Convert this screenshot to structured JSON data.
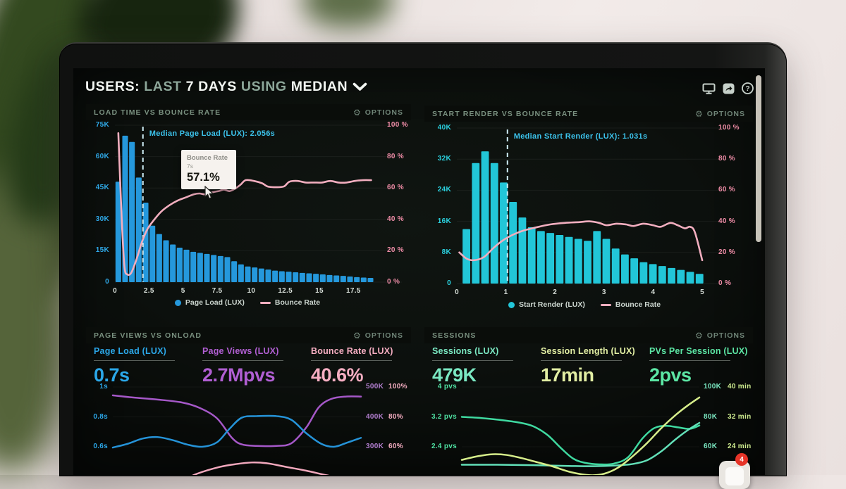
{
  "header": {
    "title_parts": [
      {
        "text": "USERS:",
        "tone": "bright"
      },
      {
        "text": "LAST",
        "tone": "dim"
      },
      {
        "text": "7 DAYS",
        "tone": "bright"
      },
      {
        "text": "USING",
        "tone": "dim"
      },
      {
        "text": "MEDIAN",
        "tone": "bright"
      }
    ],
    "icons": [
      "display-icon",
      "share-icon",
      "help-icon"
    ]
  },
  "options_label": "OPTIONS",
  "tooltip": {
    "title": "Bounce Rate",
    "x_value": "7s",
    "value": "57.1%"
  },
  "notification_badge": "4",
  "colors": {
    "screen_bg": "#0c100d",
    "blue": "#2ba2e4",
    "cyan": "#27c9da",
    "pink_line": "#f2aebf",
    "pink_text": "#ee8ca6",
    "purple": "#a85ace",
    "mint": "#7be9c3",
    "green": "#4fe0a2",
    "yellow_green": "#d6ed8a"
  },
  "chart_data": [
    {
      "type": "bar",
      "panel": "load-time-vs-bounce-rate",
      "title": "LOAD TIME VS BOUNCE RATE",
      "x_axis": {
        "ticks": [
          "0",
          "2.5",
          "5",
          "7.5",
          "10",
          "12.5",
          "15",
          "17.5"
        ],
        "max": 19.5,
        "unit": "seconds"
      },
      "left_axis": {
        "ticks": [
          "75K",
          "60K",
          "45K",
          "30K",
          "15K",
          "0"
        ],
        "max_value": 75000,
        "color": "#2fa9e8"
      },
      "right_axis": {
        "ticks": [
          "100 %",
          "80 %",
          "60 %",
          "40 %",
          "20 %",
          "0 %"
        ],
        "max_value": 100,
        "color": "#ee8ca6"
      },
      "bars": {
        "name": "Page Load (LUX)",
        "color": "#2598dc",
        "start": 0,
        "step": 0.5,
        "values_thousands": [
          48,
          70,
          67,
          50,
          38,
          27,
          23,
          20,
          18,
          16.5,
          15.5,
          14.5,
          14,
          13.5,
          13,
          12.5,
          12,
          10,
          8.5,
          7.5,
          7,
          6.5,
          6,
          5.5,
          5.2,
          5,
          4.7,
          4.4,
          4.2,
          4,
          3.7,
          3.4,
          3.2,
          3,
          2.7,
          2.4,
          2.2,
          2
        ]
      },
      "line": {
        "name": "Bounce Rate",
        "color": "#f2aebf",
        "points_s_pct": [
          [
            0.25,
            95
          ],
          [
            0.5,
            40
          ],
          [
            0.7,
            10
          ],
          [
            0.9,
            5
          ],
          [
            1.2,
            6
          ],
          [
            1.6,
            15
          ],
          [
            2.0,
            26
          ],
          [
            2.4,
            34
          ],
          [
            2.9,
            40
          ],
          [
            3.4,
            45
          ],
          [
            4.0,
            49
          ],
          [
            4.6,
            52
          ],
          [
            5.2,
            54
          ],
          [
            5.8,
            56
          ],
          [
            6.2,
            56.5
          ],
          [
            6.6,
            56
          ],
          [
            7.0,
            57.1
          ],
          [
            7.6,
            58
          ],
          [
            8.0,
            59
          ],
          [
            8.4,
            58
          ],
          [
            8.8,
            59.5
          ],
          [
            9.2,
            62
          ],
          [
            9.6,
            65
          ],
          [
            10.2,
            64.5
          ],
          [
            10.8,
            63
          ],
          [
            11.2,
            61
          ],
          [
            11.8,
            60.5
          ],
          [
            12.4,
            61
          ],
          [
            12.8,
            64
          ],
          [
            13.4,
            64.5
          ],
          [
            14.0,
            63.5
          ],
          [
            14.6,
            63.5
          ],
          [
            15.2,
            63.5
          ],
          [
            15.8,
            64.5
          ],
          [
            16.4,
            63.5
          ],
          [
            17.0,
            63.5
          ],
          [
            17.6,
            64.5
          ],
          [
            18.2,
            65
          ],
          [
            18.8,
            65
          ]
        ]
      },
      "median": {
        "label": "Median Page Load (LUX): 2.056s",
        "value_s": 2.056
      },
      "legend": [
        {
          "label": "Page Load (LUX)",
          "marker": "dot",
          "color": "#2598dc"
        },
        {
          "label": "Bounce Rate",
          "marker": "line",
          "color": "#f2aebf"
        }
      ]
    },
    {
      "type": "bar",
      "panel": "start-render-vs-bounce-rate",
      "title": "START RENDER VS BOUNCE RATE",
      "x_axis": {
        "ticks": [
          "0",
          "1",
          "2",
          "3",
          "4",
          "5"
        ],
        "max": 5.2,
        "unit": "seconds"
      },
      "left_axis": {
        "ticks": [
          "40K",
          "32K",
          "24K",
          "16K",
          "8K",
          "0"
        ],
        "max_value": 40000,
        "color": "#2bd2e0"
      },
      "right_axis": {
        "ticks": [
          "100 %",
          "80 %",
          "60 %",
          "40 %",
          "20 %",
          "0 %"
        ],
        "max_value": 100,
        "color": "#ee8ca6"
      },
      "bars": {
        "name": "Start Render (LUX)",
        "color": "#22c6d8",
        "start": 0.1,
        "step": 0.19,
        "values_thousands": [
          14,
          31,
          34,
          31,
          26,
          21,
          17,
          14.5,
          13.5,
          13,
          12.5,
          12,
          11.5,
          11,
          13.5,
          11.5,
          9,
          7.5,
          6.5,
          5.5,
          5,
          4.5,
          4,
          3.5,
          3,
          2.5
        ]
      },
      "line": {
        "name": "Bounce Rate",
        "color": "#f2aebf",
        "points_s_pct": [
          [
            0.05,
            20
          ],
          [
            0.2,
            16
          ],
          [
            0.35,
            15
          ],
          [
            0.55,
            17
          ],
          [
            0.75,
            23
          ],
          [
            0.95,
            28
          ],
          [
            1.15,
            31.5
          ],
          [
            1.35,
            34
          ],
          [
            1.6,
            36
          ],
          [
            1.9,
            38
          ],
          [
            2.2,
            39
          ],
          [
            2.5,
            39.5
          ],
          [
            2.7,
            40
          ],
          [
            2.9,
            39
          ],
          [
            3.05,
            37.5
          ],
          [
            3.25,
            38.5
          ],
          [
            3.45,
            38
          ],
          [
            3.6,
            37
          ],
          [
            3.8,
            38.5
          ],
          [
            4.0,
            37.5
          ],
          [
            4.15,
            36.5
          ],
          [
            4.35,
            39
          ],
          [
            4.5,
            37.5
          ],
          [
            4.65,
            35.5
          ],
          [
            4.75,
            36.5
          ],
          [
            4.85,
            33
          ],
          [
            5.0,
            15
          ]
        ]
      },
      "median": {
        "label": "Median Start Render (LUX): 1.031s",
        "value_s": 1.031
      },
      "legend": [
        {
          "label": "Start Render (LUX)",
          "marker": "dot",
          "color": "#22c6d8"
        },
        {
          "label": "Bounce Rate",
          "marker": "line",
          "color": "#f2aebf"
        }
      ]
    },
    {
      "type": "line",
      "panel": "page-views-vs-onload",
      "title": "PAGE VIEWS VS ONLOAD",
      "metrics": [
        {
          "label": "Page Load (LUX)",
          "value": "0.7s",
          "color": "#2ba7e8"
        },
        {
          "label": "Page Views (LUX)",
          "value": "2.7Mpvs",
          "color": "#b15fd3"
        },
        {
          "label": "Bounce Rate (LUX)",
          "value": "40.6%",
          "color": "#f6aec2"
        }
      ],
      "left_axis": {
        "ticks": [
          "1s",
          "0.8s",
          "0.6s"
        ],
        "values": [
          1,
          0.8,
          0.6
        ],
        "color": "#2ba7e8"
      },
      "right_axis_outer": {
        "ticks": [
          "500K",
          "400K",
          "300K"
        ],
        "values": [
          500,
          400,
          300
        ],
        "color": "#b37fd0"
      },
      "right_axis_inner": {
        "ticks": [
          "100%",
          "80%",
          "60%"
        ],
        "values": [
          100,
          80,
          60
        ],
        "color": "#f6aec2"
      },
      "series": [
        {
          "name": "Page Views (LUX)",
          "axis": "thousands",
          "color": "#a558c8",
          "points": [
            [
              0,
              472
            ],
            [
              8,
              465
            ],
            [
              18,
              458
            ],
            [
              28,
              448
            ],
            [
              35,
              430
            ],
            [
              42,
              395
            ],
            [
              48,
              330
            ],
            [
              52,
              308
            ],
            [
              58,
              303
            ],
            [
              66,
              303
            ],
            [
              72,
              312
            ],
            [
              78,
              365
            ],
            [
              83,
              432
            ],
            [
              88,
              460
            ],
            [
              94,
              468
            ],
            [
              100,
              468
            ]
          ]
        },
        {
          "name": "Page Load (LUX)",
          "axis": "seconds",
          "color": "#2593d8",
          "points": [
            [
              0,
              0.595
            ],
            [
              6,
              0.62
            ],
            [
              12,
              0.655
            ],
            [
              18,
              0.665
            ],
            [
              24,
              0.645
            ],
            [
              30,
              0.615
            ],
            [
              36,
              0.6
            ],
            [
              42,
              0.63
            ],
            [
              47,
              0.72
            ],
            [
              52,
              0.795
            ],
            [
              58,
              0.805
            ],
            [
              66,
              0.805
            ],
            [
              72,
              0.78
            ],
            [
              78,
              0.69
            ],
            [
              84,
              0.62
            ],
            [
              89,
              0.6
            ],
            [
              94,
              0.625
            ],
            [
              100,
              0.66
            ]
          ]
        },
        {
          "name": "Bounce Rate (LUX)",
          "axis": "percent",
          "color": "#f2a8bd",
          "points": [
            [
              26,
              36
            ],
            [
              34,
              42
            ],
            [
              43,
              46.5
            ],
            [
              50,
              48.5
            ],
            [
              56,
              49.5
            ],
            [
              62,
              49
            ],
            [
              70,
              46.5
            ],
            [
              78,
              44
            ],
            [
              86,
              41
            ],
            [
              94,
              38.5
            ],
            [
              100,
              37.5
            ]
          ]
        }
      ]
    },
    {
      "type": "line",
      "panel": "sessions",
      "title": "SESSIONS",
      "metrics": [
        {
          "label": "Sessions (LUX)",
          "value": "479K",
          "color": "#7be9c3"
        },
        {
          "label": "Session Length (LUX)",
          "value": "17min",
          "color": "#e3efa4"
        },
        {
          "label": "PVs Per Session (LUX)",
          "value": "2pvs",
          "color": "#5ce6a4"
        }
      ],
      "left_axis": {
        "ticks": [
          "4 pvs",
          "3.2 pvs",
          "2.4 pvs"
        ],
        "values": [
          4,
          3.2,
          2.4
        ],
        "color": "#4fe0a2"
      },
      "right_axis_outer": {
        "ticks": [
          "100K",
          "80K",
          "60K"
        ],
        "values": [
          100,
          80,
          60
        ],
        "color": "#7be9c3"
      },
      "right_axis_inner": {
        "ticks": [
          "40 min",
          "32 min",
          "24 min"
        ],
        "values": [
          40,
          32,
          24
        ],
        "color": "#cdeb8f"
      },
      "series": [
        {
          "name": "PVs Per Session (LUX)",
          "axis": "pvs",
          "color": "#3fd9a0",
          "points": [
            [
              0,
              3.2
            ],
            [
              8,
              3.17
            ],
            [
              16,
              3.12
            ],
            [
              24,
              3.05
            ],
            [
              30,
              2.95
            ],
            [
              36,
              2.72
            ],
            [
              42,
              2.35
            ],
            [
              47,
              2.08
            ],
            [
              52,
              1.97
            ],
            [
              58,
              1.93
            ],
            [
              64,
              1.95
            ],
            [
              70,
              2.12
            ],
            [
              76,
              2.62
            ],
            [
              81,
              2.9
            ],
            [
              86,
              2.96
            ],
            [
              91,
              2.92
            ],
            [
              96,
              2.88
            ],
            [
              100,
              2.97
            ]
          ]
        },
        {
          "name": "Sessions (LUX)",
          "axis": "thousands",
          "color": "#62e0b8",
          "points": [
            [
              0,
              48
            ],
            [
              15,
              48
            ],
            [
              30,
              47.7
            ],
            [
              45,
              47.2
            ],
            [
              55,
              47
            ],
            [
              65,
              47.5
            ],
            [
              72,
              48.5
            ],
            [
              78,
              51
            ],
            [
              84,
              57
            ],
            [
              90,
              65
            ],
            [
              95,
              71
            ],
            [
              100,
              76
            ]
          ]
        },
        {
          "name": "Session Length (LUX)",
          "axis": "minutes",
          "color": "#d6ed8a",
          "points": [
            [
              0,
              20.5
            ],
            [
              7,
              21.5
            ],
            [
              13,
              22
            ],
            [
              19,
              21.8
            ],
            [
              25,
              21
            ],
            [
              31,
              20
            ],
            [
              38,
              18.8
            ],
            [
              46,
              17.2
            ],
            [
              54,
              16.4
            ],
            [
              60,
              16.8
            ],
            [
              66,
              18.5
            ],
            [
              72,
              21.5
            ],
            [
              78,
              25
            ],
            [
              84,
              29
            ],
            [
              90,
              32.5
            ],
            [
              95,
              35
            ],
            [
              100,
              37.2
            ]
          ]
        }
      ]
    }
  ]
}
